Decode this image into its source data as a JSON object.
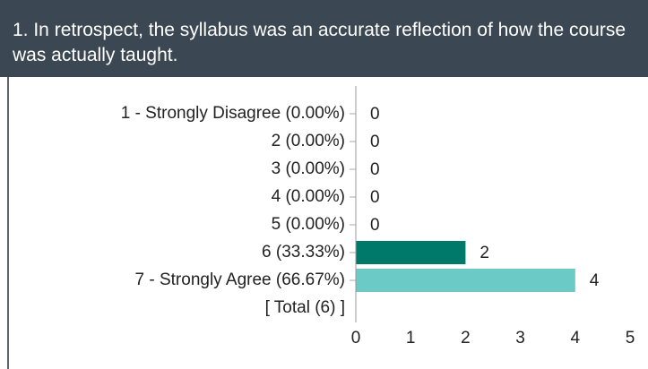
{
  "chart_data": {
    "type": "bar",
    "orientation": "horizontal",
    "title": "1. In retrospect, the syllabus was an accurate reflection of how the course was actually taught.",
    "categories": [
      "1 - Strongly Disagree (0.00%)",
      "2 (0.00%)",
      "3 (0.00%)",
      "4 (0.00%)",
      "5 (0.00%)",
      "6 (33.33%)",
      "7 - Strongly Agree (66.67%)"
    ],
    "values": [
      0,
      0,
      0,
      0,
      0,
      2,
      4
    ],
    "colors": [
      "#00796b",
      "#00796b",
      "#00796b",
      "#00796b",
      "#00796b",
      "#00796b",
      "#6ccac6"
    ],
    "total_label": "[ Total (6) ]",
    "xlim": [
      0,
      5
    ],
    "xticks": [
      0,
      1,
      2,
      3,
      4,
      5
    ],
    "grid": false
  }
}
